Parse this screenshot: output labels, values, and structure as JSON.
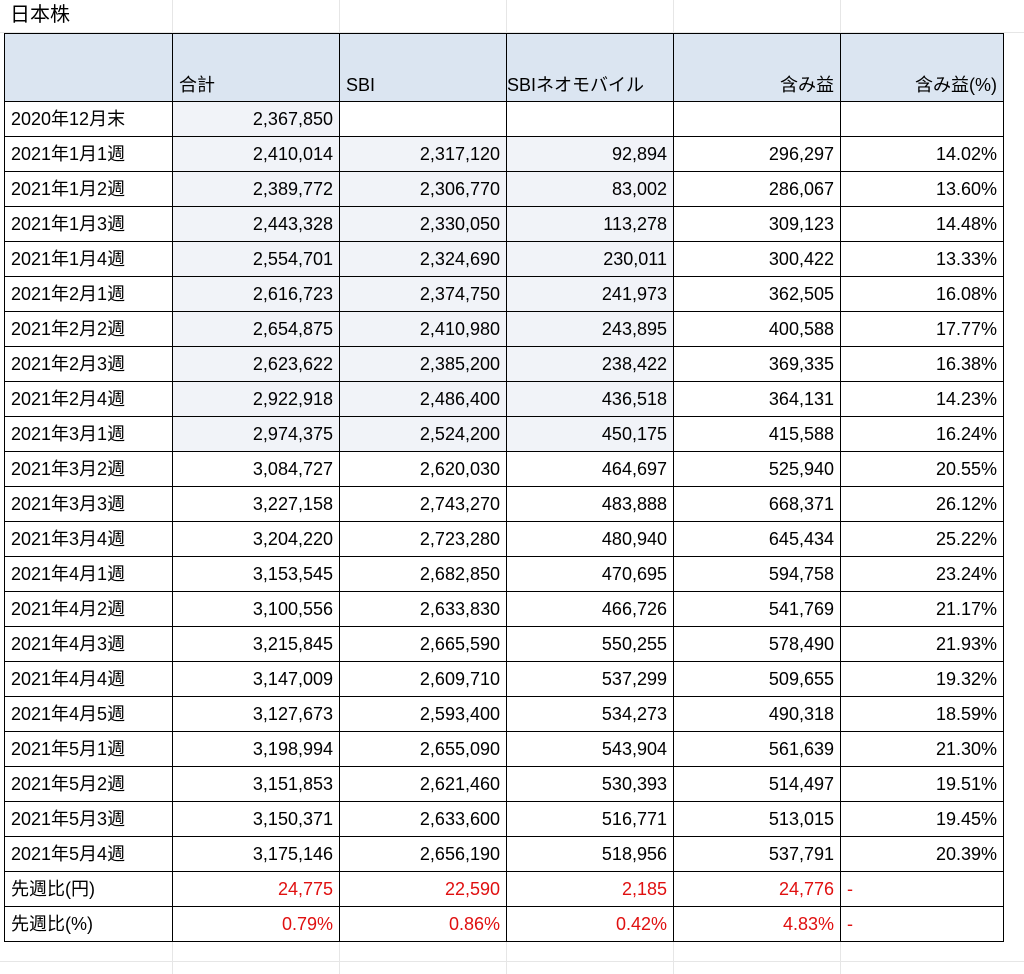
{
  "sheet_title": "日本株",
  "headers": [
    "",
    "合計",
    "SBI",
    "SBIネオモバイル",
    "含み益",
    "含み益(%)"
  ],
  "rows": [
    [
      "2020年12月末",
      "2,367,850",
      "",
      "",
      "",
      ""
    ],
    [
      "2021年1月1週",
      "2,410,014",
      "2,317,120",
      "92,894",
      "296,297",
      "14.02%"
    ],
    [
      "2021年1月2週",
      "2,389,772",
      "2,306,770",
      "83,002",
      "286,067",
      "13.60%"
    ],
    [
      "2021年1月3週",
      "2,443,328",
      "2,330,050",
      "113,278",
      "309,123",
      "14.48%"
    ],
    [
      "2021年1月4週",
      "2,554,701",
      "2,324,690",
      "230,011",
      "300,422",
      "13.33%"
    ],
    [
      "2021年2月1週",
      "2,616,723",
      "2,374,750",
      "241,973",
      "362,505",
      "16.08%"
    ],
    [
      "2021年2月2週",
      "2,654,875",
      "2,410,980",
      "243,895",
      "400,588",
      "17.77%"
    ],
    [
      "2021年2月3週",
      "2,623,622",
      "2,385,200",
      "238,422",
      "369,335",
      "16.38%"
    ],
    [
      "2021年2月4週",
      "2,922,918",
      "2,486,400",
      "436,518",
      "364,131",
      "14.23%"
    ],
    [
      "2021年3月1週",
      "2,974,375",
      "2,524,200",
      "450,175",
      "415,588",
      "16.24%"
    ],
    [
      "2021年3月2週",
      "3,084,727",
      "2,620,030",
      "464,697",
      "525,940",
      "20.55%"
    ],
    [
      "2021年3月3週",
      "3,227,158",
      "2,743,270",
      "483,888",
      "668,371",
      "26.12%"
    ],
    [
      "2021年3月4週",
      "3,204,220",
      "2,723,280",
      "480,940",
      "645,434",
      "25.22%"
    ],
    [
      "2021年4月1週",
      "3,153,545",
      "2,682,850",
      "470,695",
      "594,758",
      "23.24%"
    ],
    [
      "2021年4月2週",
      "3,100,556",
      "2,633,830",
      "466,726",
      "541,769",
      "21.17%"
    ],
    [
      "2021年4月3週",
      "3,215,845",
      "2,665,590",
      "550,255",
      "578,490",
      "21.93%"
    ],
    [
      "2021年4月4週",
      "3,147,009",
      "2,609,710",
      "537,299",
      "509,655",
      "19.32%"
    ],
    [
      "2021年4月5週",
      "3,127,673",
      "2,593,400",
      "534,273",
      "490,318",
      "18.59%"
    ],
    [
      "2021年5月1週",
      "3,198,994",
      "2,655,090",
      "543,904",
      "561,639",
      "21.30%"
    ],
    [
      "2021年5月2週",
      "3,151,853",
      "2,621,460",
      "530,393",
      "514,497",
      "19.51%"
    ],
    [
      "2021年5月3週",
      "3,150,371",
      "2,633,600",
      "516,771",
      "513,015",
      "19.45%"
    ],
    [
      "2021年5月4週",
      "3,175,146",
      "2,656,190",
      "518,956",
      "537,791",
      "20.39%"
    ]
  ],
  "summary_rows": [
    [
      "先週比(円)",
      "24,775",
      "22,590",
      "2,185",
      "24,776",
      "-"
    ],
    [
      "先週比(%)",
      "0.79%",
      "0.86%",
      "0.42%",
      "4.83%",
      "-"
    ]
  ],
  "colors": {
    "header_fill": "#dbe5f1",
    "shaded_fill": "#f1f3f8",
    "negative_text": "#e01010",
    "border": "#000000"
  }
}
